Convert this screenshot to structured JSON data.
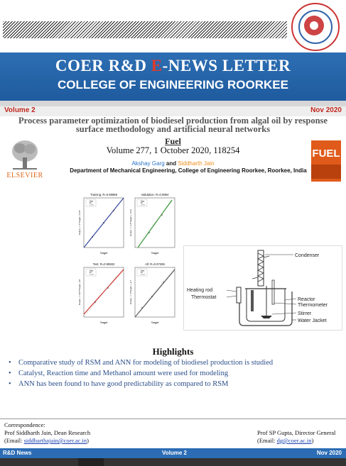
{
  "banner": {
    "title_prefix": "COER R&D ",
    "title_highlight": "E",
    "title_suffix": "-NEWS LETTER",
    "college": "COLLEGE OF ENGINEERING ROORKEE"
  },
  "issue": {
    "volume": "Volume 2",
    "date": "Nov 2020"
  },
  "paper": {
    "title": "Process parameter optimization of biodiesel production from algal oil by response surface methodology and artificial neural networks",
    "journal": "Fuel",
    "citation": "Volume 277, 1 October 2020, 118254",
    "author1": "Akshay Garg",
    "author_and": "and",
    "author2": "Siddharth Jain",
    "department": "Department of Mechanical Engineering, College of Engineering Roorkee, Roorkee, India"
  },
  "logos": {
    "publisher": "ELSEVIER",
    "journal_cover": "FUEL"
  },
  "plots": [
    {
      "title": "Training: R=0.99969",
      "ylabel": "Output ~= 1*Target + 0.18",
      "xlabel": "Target",
      "color": "#2b3fa0"
    },
    {
      "title": "Validation: R=0.9994",
      "ylabel": "Output ~= 1.2*Target + -0.21",
      "xlabel": "Target",
      "color": "#3a9a3a"
    },
    {
      "title": "Test: R=0.99932",
      "ylabel": "Output ~= 0.97*Target + 10",
      "xlabel": "Target",
      "color": "#d0302a"
    },
    {
      "title": "All: R=0.97285",
      "ylabel": "Output ~= 1*Target + -2.7",
      "xlabel": "Target",
      "color": "#555555"
    }
  ],
  "plot_legend": [
    "Data",
    "Fit",
    "Y = T"
  ],
  "reactor_labels": {
    "condenser": "Condenser",
    "reactor": "Reactor",
    "thermometer": "Thermometer",
    "heating_rod": "Heating rod",
    "thermostat": "Thermostat",
    "stirrer": "Stirrer",
    "water_jacket": "Water Jacket"
  },
  "highlights": {
    "title": "Highlights",
    "items": [
      "Comparative study of RSM and ANN for modeling of biodiesel production is studied",
      "Catalyst, Reaction time and Methanol amount were used for modeling",
      "ANN has been found to have good predictability as compared to RSM"
    ]
  },
  "correspondence": {
    "heading": "Correspondence:",
    "name": "Prof Siddharth Jain, Dean Research",
    "email_prefix": "(Email: ",
    "email": "siddharthajain@coer.ac.in",
    "email_suffix": ")"
  },
  "director": {
    "name": "Prof SP Gupta, Director General",
    "email_prefix": "(Email: ",
    "email": "dg@coer.ac.in",
    "email_suffix": ")"
  },
  "footer": {
    "left": "R&D News",
    "center": "Volume 2",
    "right": "Nov 2020"
  }
}
